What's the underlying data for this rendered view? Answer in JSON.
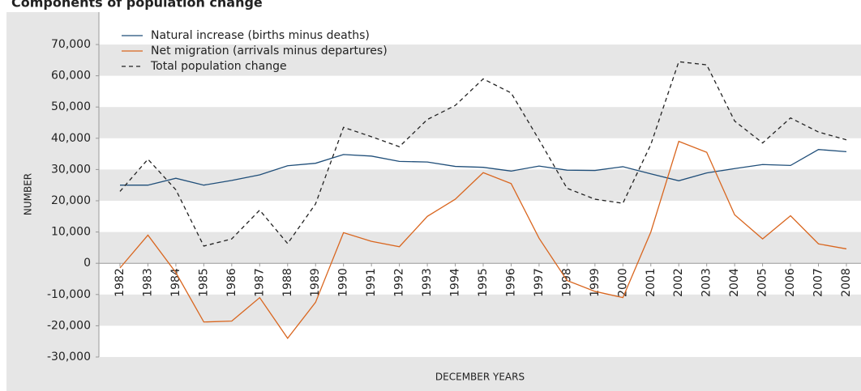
{
  "chart_data": {
    "type": "line",
    "title": "Components of population change",
    "ylabel": "NUMBER",
    "xlabel": "DECEMBER YEARS",
    "categories": [
      "1982",
      "1983",
      "1984",
      "1985",
      "1986",
      "1987",
      "1988",
      "1989",
      "1990",
      "1991",
      "1992",
      "1993",
      "1994",
      "1995",
      "1996",
      "1997",
      "1998",
      "1999",
      "2000",
      "2001",
      "2002",
      "2003",
      "2004",
      "2005",
      "2006",
      "2007",
      "2008"
    ],
    "series": [
      {
        "name": "Natural increase (births minus deaths)",
        "color": "#1f4e79",
        "dash": false,
        "values": [
          25000,
          25000,
          27200,
          25000,
          26500,
          28300,
          31200,
          32000,
          34800,
          34300,
          32600,
          32400,
          31000,
          30700,
          29500,
          31100,
          29800,
          29700,
          30900,
          28600,
          26400,
          28900,
          30300,
          31600,
          31300,
          36400,
          35700
        ]
      },
      {
        "name": "Net migration (arrivals minus departures)",
        "color": "#d9661f",
        "dash": false,
        "values": [
          -1500,
          9000,
          -3000,
          -18800,
          -18500,
          -11000,
          -24000,
          -12500,
          9800,
          7000,
          5300,
          15000,
          20500,
          29000,
          25500,
          8000,
          -5500,
          -9000,
          -11000,
          10000,
          39000,
          35500,
          15500,
          7800,
          15200,
          6200,
          4600
        ]
      },
      {
        "name": "Total population change",
        "color": "#222222",
        "dash": true,
        "values": [
          23000,
          33300,
          23500,
          5500,
          7800,
          17000,
          6300,
          19000,
          43500,
          40500,
          37300,
          46000,
          50500,
          59000,
          54500,
          39500,
          24000,
          20500,
          19200,
          38000,
          64500,
          63500,
          45500,
          38500,
          46500,
          42000,
          39500
        ]
      }
    ],
    "ylim": [
      -30000,
      70000
    ],
    "yticks": [
      {
        "value": -30000,
        "label": "-30,000"
      },
      {
        "value": -20000,
        "label": "-20,000"
      },
      {
        "value": -10000,
        "label": "-10,000"
      },
      0,
      {
        "value": 10000,
        "label": "10,000"
      },
      {
        "value": 20000,
        "label": "20,000"
      },
      {
        "value": 30000,
        "label": "30,000"
      },
      {
        "value": 40000,
        "label": "40,000"
      },
      {
        "value": 50000,
        "label": "50,000"
      },
      {
        "value": 60000,
        "label": "60,000"
      },
      {
        "value": 70000,
        "label": "70,000"
      }
    ],
    "grid": "bands"
  }
}
